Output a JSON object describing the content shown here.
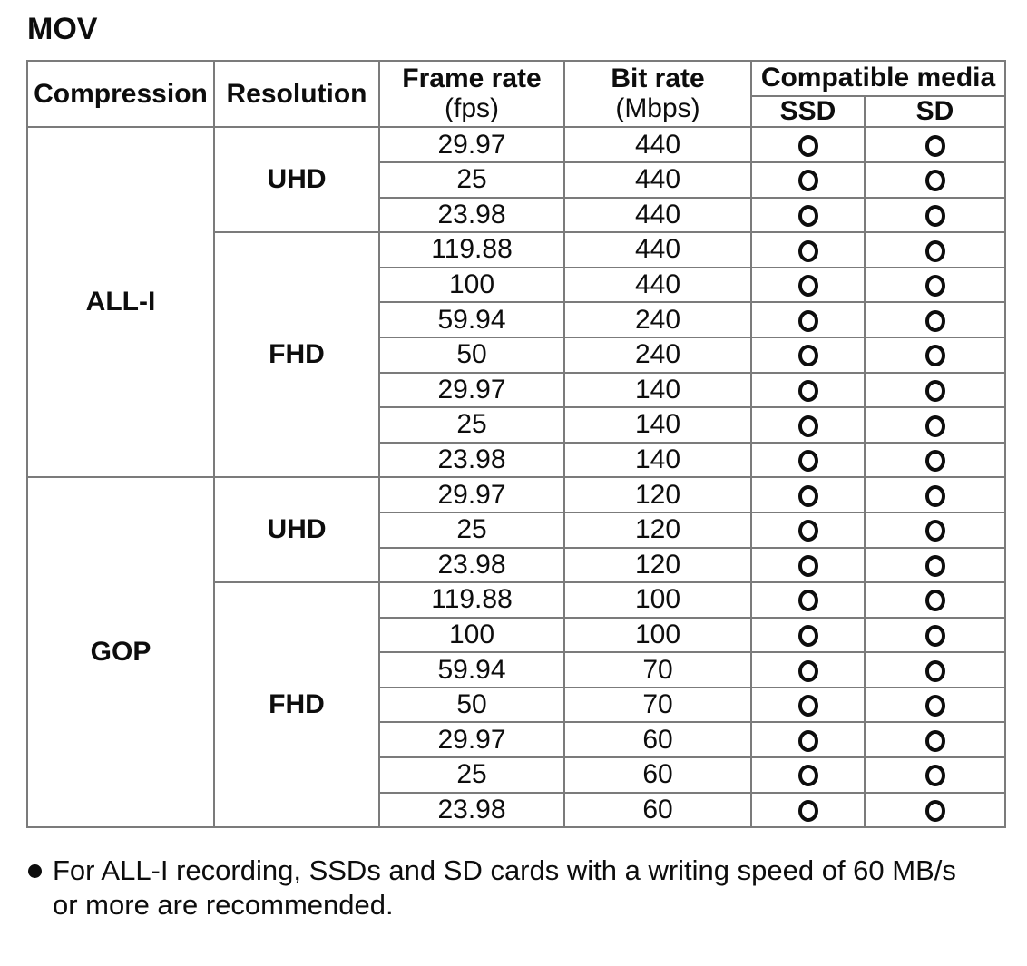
{
  "page_title": "MOV",
  "table": {
    "headers": {
      "compression": "Compression",
      "resolution": "Resolution",
      "frame_rate": "Frame rate",
      "frame_rate_unit": "(fps)",
      "bit_rate": "Bit rate",
      "bit_rate_unit": "(Mbps)",
      "compatible_media": "Compatible media",
      "ssd": "SSD",
      "sd": "SD"
    },
    "compat_symbol": "O",
    "groups": [
      {
        "compression": "ALL-I",
        "resolutions": [
          {
            "name": "UHD",
            "rows": [
              {
                "fps": "29.97",
                "mbps": "440",
                "ssd": true,
                "sd": true
              },
              {
                "fps": "25",
                "mbps": "440",
                "ssd": true,
                "sd": true
              },
              {
                "fps": "23.98",
                "mbps": "440",
                "ssd": true,
                "sd": true
              }
            ]
          },
          {
            "name": "FHD",
            "rows": [
              {
                "fps": "119.88",
                "mbps": "440",
                "ssd": true,
                "sd": true
              },
              {
                "fps": "100",
                "mbps": "440",
                "ssd": true,
                "sd": true
              },
              {
                "fps": "59.94",
                "mbps": "240",
                "ssd": true,
                "sd": true
              },
              {
                "fps": "50",
                "mbps": "240",
                "ssd": true,
                "sd": true
              },
              {
                "fps": "29.97",
                "mbps": "140",
                "ssd": true,
                "sd": true
              },
              {
                "fps": "25",
                "mbps": "140",
                "ssd": true,
                "sd": true
              },
              {
                "fps": "23.98",
                "mbps": "140",
                "ssd": true,
                "sd": true
              }
            ]
          }
        ]
      },
      {
        "compression": "GOP",
        "resolutions": [
          {
            "name": "UHD",
            "rows": [
              {
                "fps": "29.97",
                "mbps": "120",
                "ssd": true,
                "sd": true
              },
              {
                "fps": "25",
                "mbps": "120",
                "ssd": true,
                "sd": true
              },
              {
                "fps": "23.98",
                "mbps": "120",
                "ssd": true,
                "sd": true
              }
            ]
          },
          {
            "name": "FHD",
            "rows": [
              {
                "fps": "119.88",
                "mbps": "100",
                "ssd": true,
                "sd": true
              },
              {
                "fps": "100",
                "mbps": "100",
                "ssd": true,
                "sd": true
              },
              {
                "fps": "59.94",
                "mbps": "70",
                "ssd": true,
                "sd": true
              },
              {
                "fps": "50",
                "mbps": "70",
                "ssd": true,
                "sd": true
              },
              {
                "fps": "29.97",
                "mbps": "60",
                "ssd": true,
                "sd": true
              },
              {
                "fps": "25",
                "mbps": "60",
                "ssd": true,
                "sd": true
              },
              {
                "fps": "23.98",
                "mbps": "60",
                "ssd": true,
                "sd": true
              }
            ]
          }
        ]
      }
    ]
  },
  "note": {
    "text": "For ALL-I recording, SSDs and SD cards with a writing speed of 60 MB/s or more are recommended."
  }
}
